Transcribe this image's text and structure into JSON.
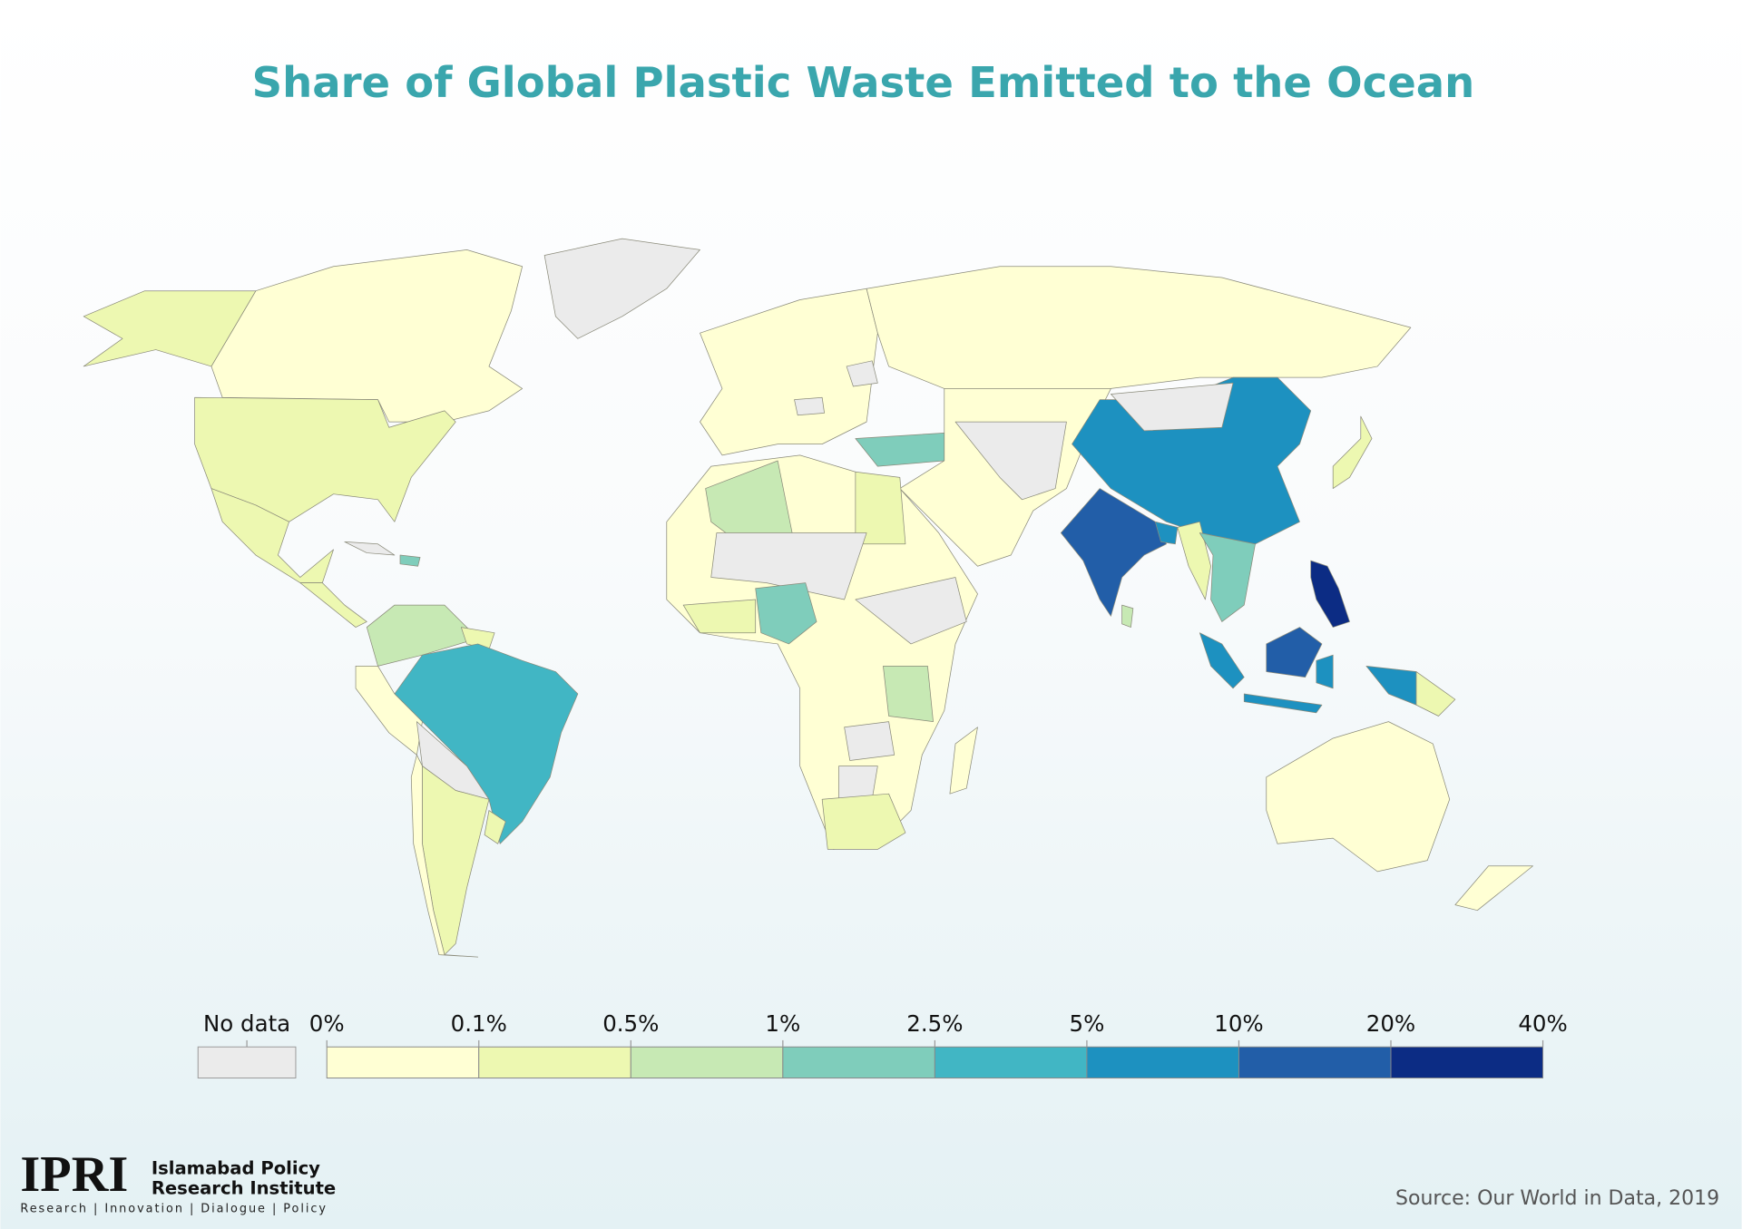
{
  "title": "Share of Global Plastic Waste Emitted to the Ocean",
  "legend": {
    "no_data_label": "No data",
    "no_data_color": "#ebebeb",
    "ticks": [
      {
        "value": 0,
        "label": "0%"
      },
      {
        "value": 0.1,
        "label": "0.1%"
      },
      {
        "value": 0.5,
        "label": "0.5%"
      },
      {
        "value": 1,
        "label": "1%"
      },
      {
        "value": 2.5,
        "label": "2.5%"
      },
      {
        "value": 5,
        "label": "5%"
      },
      {
        "value": 10,
        "label": "10%"
      },
      {
        "value": 20,
        "label": "20%"
      },
      {
        "value": 40,
        "label": "40%"
      }
    ],
    "colors": [
      "#ffffd4",
      "#edf8b1",
      "#c7e9b4",
      "#7fcdbb",
      "#41b6c4",
      "#1d91c0",
      "#225ea8",
      "#0c2c84"
    ]
  },
  "logo": {
    "acronym": "IPRI",
    "name_line1": "Islamabad Policy",
    "name_line2": "Research Institute",
    "tagline": "Research | Innovation | Dialogue | Policy"
  },
  "source": "Source: Our World in Data, 2019"
}
